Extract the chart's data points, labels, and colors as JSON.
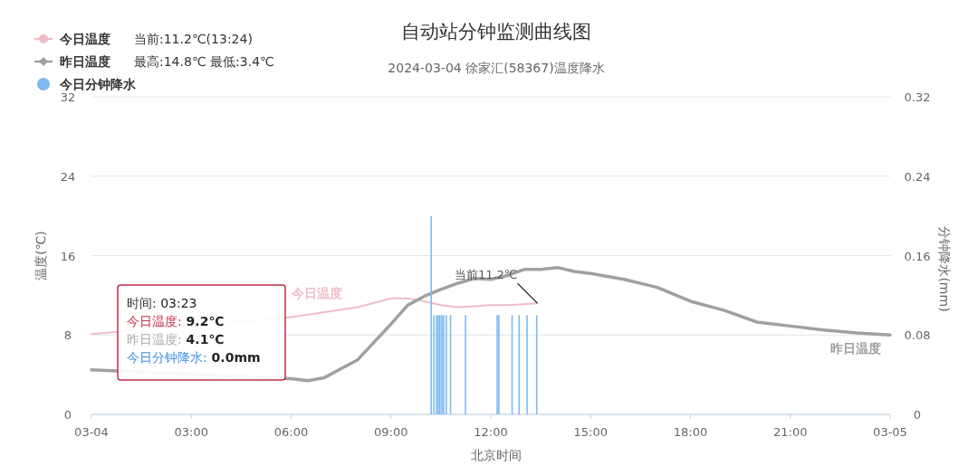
{
  "chart_data": {
    "type": "line",
    "title": "自动站分钟监测曲线图",
    "subtitle": "2024-03-04 徐家汇(58367)温度降水",
    "xlabel": "北京时间",
    "ylabel": "温度(℃)",
    "y2label": "分钟降水(mm)",
    "xlim": [
      0,
      24
    ],
    "xticks": [
      {
        "value": 0,
        "label": "03-04"
      },
      {
        "value": 3,
        "label": "03:00"
      },
      {
        "value": 6,
        "label": "06:00"
      },
      {
        "value": 9,
        "label": "09:00"
      },
      {
        "value": 12,
        "label": "12:00"
      },
      {
        "value": 15,
        "label": "15:00"
      },
      {
        "value": 18,
        "label": "18:00"
      },
      {
        "value": 21,
        "label": "21:00"
      },
      {
        "value": 24,
        "label": "03-05"
      }
    ],
    "ylim": [
      0,
      32
    ],
    "yticks": [
      0,
      8,
      16,
      24,
      32
    ],
    "y2lim": [
      0,
      0.32
    ],
    "y2ticks": [
      0,
      0.08,
      0.16,
      0.24,
      0.32
    ],
    "grid": "y",
    "legend": "top left",
    "annotations": [
      "当前:11.2℃(13:24)",
      "最高:14.8℃ 最低:3.4℃",
      "时间: 03:23",
      "今日温度: 9.2℃",
      "昨日温度: 4.1℃",
      "今日分钟降水: 0.0mm",
      {
        "text": "当前11.2℃",
        "x": 13.4,
        "y": 11.2
      }
    ],
    "series": [
      {
        "name": "今日温度",
        "color": "#f0bcc8",
        "x": [
          0,
          6,
          7,
          8,
          9,
          9.5,
          10,
          10.5,
          11,
          11.5,
          12,
          12.5,
          13,
          13.4
        ],
        "values": [
          8.1,
          9.8,
          10.3,
          10.8,
          11.7,
          11.7,
          11.4,
          11.0,
          10.8,
          10.9,
          11.0,
          11.0,
          11.1,
          11.2
        ]
      },
      {
        "name": "昨日温度",
        "color": "#a0a0a0",
        "x": [
          0,
          6,
          6.5,
          7,
          7.5,
          8,
          8.5,
          9,
          9.5,
          10,
          10.5,
          11,
          11.5,
          12,
          12.5,
          13,
          13.5,
          14,
          14.5,
          15,
          16,
          17,
          18,
          19,
          20,
          21,
          22,
          23,
          24
        ],
        "values": [
          4.5,
          3.6,
          3.4,
          3.7,
          4.6,
          5.5,
          7.3,
          9.1,
          11.0,
          11.9,
          12.6,
          13.2,
          13.7,
          13.6,
          14.0,
          14.6,
          14.6,
          14.8,
          14.4,
          14.2,
          13.6,
          12.8,
          11.4,
          10.5,
          9.3,
          8.9,
          8.5,
          8.2,
          8.0
        ]
      },
      {
        "name": "今日分钟降水",
        "type": "bar",
        "axis": "y2",
        "color": "#7fbaf0",
        "x": [
          10.21,
          10.29,
          10.37,
          10.42,
          10.47,
          10.53,
          10.58,
          10.66,
          10.79,
          11.24,
          12.19,
          12.24,
          12.64,
          12.85,
          13.09,
          13.38
        ],
        "values": [
          0.2,
          0.1,
          0.1,
          0.1,
          0.1,
          0.1,
          0.1,
          0.1,
          0.1,
          0.1,
          0.1,
          0.1,
          0.1,
          0.1,
          0.1,
          0.1
        ]
      }
    ]
  }
}
